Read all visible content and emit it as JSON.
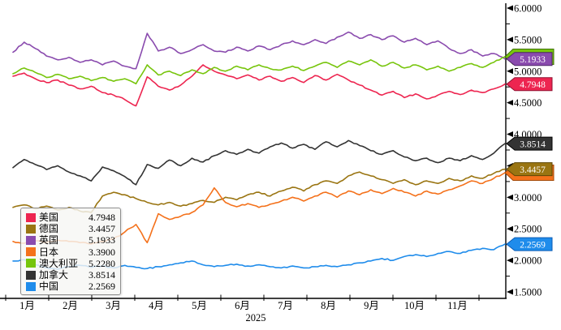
{
  "chart_data": {
    "type": "line",
    "title": "",
    "year_label": "2025",
    "grid": false,
    "legend_position": "bottom-left",
    "x_axis": {
      "month_labels": [
        "1月",
        "2月",
        "3月",
        "4月",
        "5月",
        "6月",
        "7月",
        "8月",
        "9月",
        "10月",
        "11月"
      ]
    },
    "y_axis": {
      "min": 1.5,
      "max": 6.0,
      "major_step": 0.5,
      "minor_step": 0.25,
      "tick_labels": [
        "6.0000",
        "5.5000",
        "5.0000",
        "4.5000",
        "4.0000",
        "3.5000",
        "3.0000",
        "2.5000",
        "2.0000",
        "1.5000"
      ]
    },
    "series": [
      {
        "id": "us",
        "name": "美国",
        "value_label": "4.7948",
        "color": "#ed2550",
        "badge_border": "#8f1030",
        "badge_behind": false,
        "badge_text_visible": true,
        "values": [
          4.92,
          4.97,
          4.88,
          4.82,
          4.86,
          4.78,
          4.72,
          4.76,
          4.66,
          4.62,
          4.55,
          4.45,
          4.91,
          4.76,
          4.7,
          4.78,
          4.92,
          5.1,
          5.0,
          4.94,
          4.88,
          4.94,
          4.86,
          4.92,
          4.84,
          4.9,
          4.82,
          4.93,
          4.86,
          4.95,
          4.86,
          4.78,
          4.7,
          4.62,
          4.68,
          4.58,
          4.64,
          4.56,
          4.62,
          4.68,
          4.63,
          4.7,
          4.66,
          4.72,
          4.7948
        ]
      },
      {
        "id": "germany",
        "name": "德国",
        "value_label": "3.4457",
        "color": "#9a7512",
        "badge_border": "#5f4706",
        "badge_behind": false,
        "badge_text_visible": true,
        "values": [
          2.84,
          2.88,
          2.82,
          2.86,
          2.8,
          2.84,
          2.78,
          2.76,
          3.02,
          3.08,
          3.04,
          2.98,
          2.92,
          2.88,
          2.92,
          2.86,
          2.9,
          2.95,
          2.92,
          3.0,
          2.96,
          3.04,
          3.08,
          3.02,
          3.1,
          3.16,
          3.1,
          3.2,
          3.26,
          3.22,
          3.34,
          3.4,
          3.34,
          3.28,
          3.22,
          3.28,
          3.2,
          3.26,
          3.22,
          3.3,
          3.26,
          3.34,
          3.3,
          3.38,
          3.4457
        ]
      },
      {
        "id": "uk",
        "name": "英国",
        "value_label": "5.1933",
        "color": "#8a4bae",
        "badge_border": "#4e2569",
        "badge_behind": false,
        "badge_text_visible": true,
        "values": [
          5.3,
          5.46,
          5.36,
          5.24,
          5.18,
          5.22,
          5.14,
          5.18,
          5.1,
          5.16,
          5.08,
          5.04,
          5.6,
          5.32,
          5.38,
          5.28,
          5.34,
          5.42,
          5.32,
          5.3,
          5.38,
          5.32,
          5.4,
          5.34,
          5.42,
          5.48,
          5.42,
          5.5,
          5.44,
          5.54,
          5.62,
          5.52,
          5.58,
          5.5,
          5.56,
          5.46,
          5.52,
          5.42,
          5.48,
          5.36,
          5.28,
          5.34,
          5.24,
          5.28,
          5.1933
        ]
      },
      {
        "id": "japan",
        "name": "日本",
        "value_label": "3.3900",
        "color": "#f4711b",
        "badge_border": "#a34806",
        "badge_behind": true,
        "badge_text_visible": false,
        "values": [
          2.3,
          2.27,
          2.31,
          2.28,
          2.32,
          2.3,
          2.28,
          2.26,
          2.3,
          2.34,
          2.45,
          2.57,
          2.28,
          2.74,
          2.65,
          2.7,
          2.76,
          2.88,
          3.15,
          2.92,
          2.85,
          2.9,
          2.84,
          2.89,
          2.94,
          3.0,
          2.94,
          3.02,
          3.08,
          3.0,
          3.1,
          3.04,
          3.12,
          3.06,
          3.14,
          3.08,
          3.02,
          3.1,
          3.05,
          3.12,
          3.18,
          3.26,
          3.22,
          3.3,
          3.39
        ]
      },
      {
        "id": "australia",
        "name": "澳大利亚",
        "value_label": "5.2280",
        "color": "#77c50c",
        "badge_border": "#3f7202",
        "badge_behind": true,
        "badge_text_visible": false,
        "values": [
          4.96,
          5.05,
          4.98,
          4.9,
          4.95,
          4.88,
          4.92,
          4.85,
          4.9,
          4.84,
          4.88,
          4.8,
          5.1,
          4.94,
          5.0,
          4.93,
          5.02,
          4.96,
          5.06,
          5.0,
          5.08,
          5.02,
          5.1,
          5.04,
          5.02,
          5.08,
          5.01,
          5.08,
          5.14,
          5.06,
          5.16,
          5.1,
          5.18,
          5.08,
          5.14,
          5.05,
          5.1,
          5.02,
          5.08,
          5.0,
          5.06,
          5.12,
          5.06,
          5.14,
          5.228
        ]
      },
      {
        "id": "canada",
        "name": "加拿大",
        "value_label": "3.8514",
        "color": "#333333",
        "badge_border": "#000000",
        "badge_behind": false,
        "badge_text_visible": true,
        "values": [
          3.47,
          3.6,
          3.52,
          3.44,
          3.5,
          3.4,
          3.34,
          3.26,
          3.48,
          3.42,
          3.33,
          3.2,
          3.52,
          3.46,
          3.59,
          3.5,
          3.62,
          3.56,
          3.66,
          3.74,
          3.68,
          3.76,
          3.7,
          3.8,
          3.86,
          3.78,
          3.84,
          3.76,
          3.88,
          3.8,
          3.9,
          3.82,
          3.74,
          3.68,
          3.74,
          3.64,
          3.58,
          3.62,
          3.55,
          3.62,
          3.58,
          3.66,
          3.6,
          3.7,
          3.8514
        ]
      },
      {
        "id": "china",
        "name": "中国",
        "value_label": "2.2569",
        "color": "#1f8ceb",
        "badge_border": "#0a5bb5",
        "badge_behind": false,
        "badge_text_visible": true,
        "values": [
          1.99,
          2.01,
          1.93,
          1.88,
          1.86,
          1.9,
          1.92,
          1.89,
          1.91,
          1.88,
          1.92,
          1.89,
          1.87,
          1.9,
          1.93,
          1.96,
          1.99,
          1.93,
          1.9,
          1.92,
          1.94,
          1.91,
          1.93,
          1.9,
          1.88,
          1.91,
          1.88,
          1.9,
          1.92,
          1.9,
          1.93,
          1.96,
          1.99,
          2.03,
          2.0,
          2.06,
          2.09,
          2.06,
          2.11,
          2.14,
          2.11,
          2.16,
          2.19,
          2.17,
          2.2569
        ]
      }
    ]
  }
}
